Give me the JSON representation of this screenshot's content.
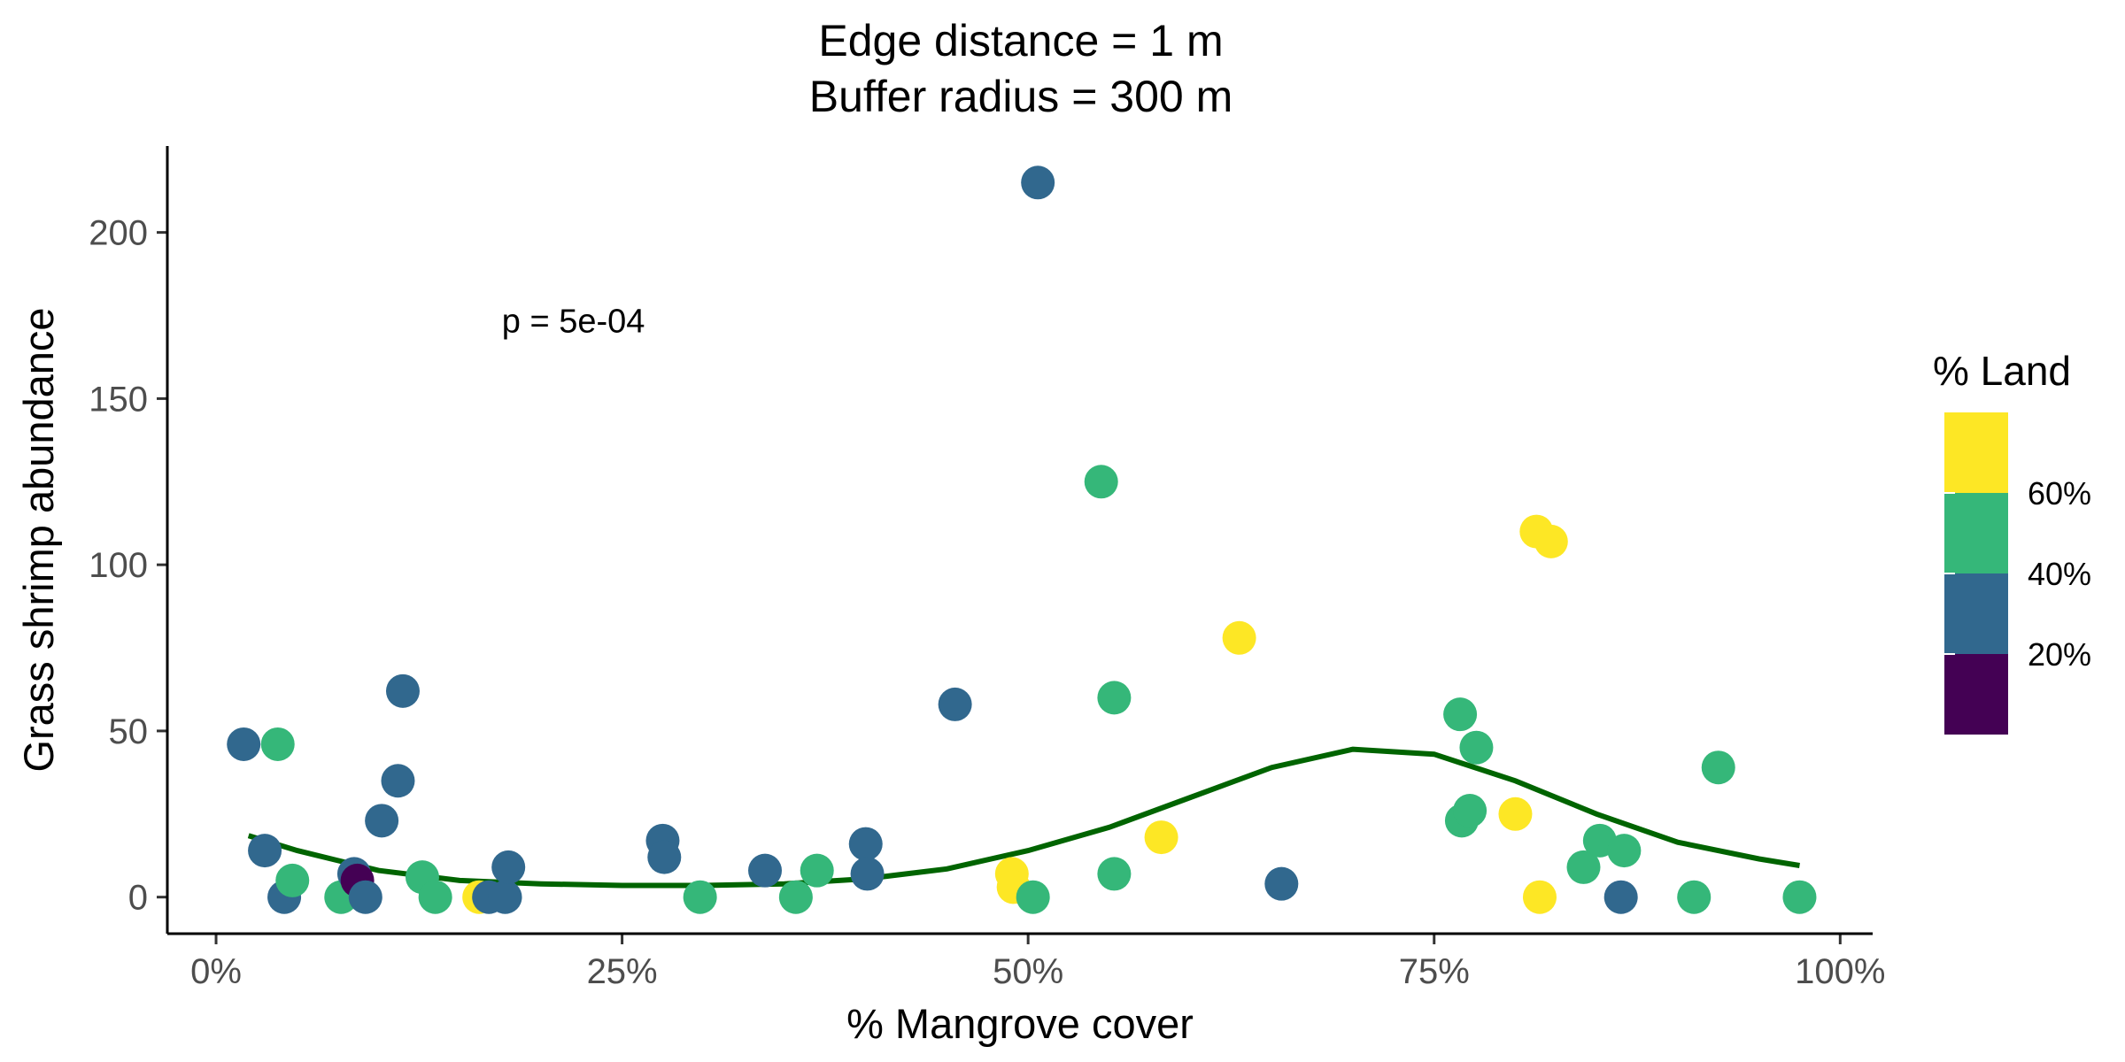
{
  "chart_data": {
    "type": "scatter",
    "title_lines": [
      "Edge distance = 1 m",
      "Buffer radius = 300 m"
    ],
    "xlabel": "% Mangrove cover",
    "ylabel": "Grass shrimp abundance",
    "xlim": [
      -0.03,
      1.02
    ],
    "ylim": [
      -11,
      226
    ],
    "x_ticks": [
      0,
      0.25,
      0.5,
      0.75,
      1.0
    ],
    "x_tick_labels": [
      "0%",
      "25%",
      "50%",
      "75%",
      "100%"
    ],
    "y_ticks": [
      0,
      50,
      100,
      150,
      200
    ],
    "y_tick_labels": [
      "0",
      "50",
      "100",
      "150",
      "200"
    ],
    "annotation": {
      "text": "p = 5e-04",
      "x": 0.22,
      "y": 170
    },
    "point_colors": {
      "yellow": "#fde725",
      "green": "#35b779",
      "blue": "#31688e",
      "purple": "#440154"
    },
    "line_color": "#006400",
    "points": [
      {
        "x": 0.017,
        "y": 46,
        "c": "blue"
      },
      {
        "x": 0.03,
        "y": 14,
        "c": "blue"
      },
      {
        "x": 0.038,
        "y": 46,
        "c": "green"
      },
      {
        "x": 0.042,
        "y": 0,
        "c": "blue"
      },
      {
        "x": 0.047,
        "y": 5,
        "c": "green"
      },
      {
        "x": 0.077,
        "y": 0,
        "c": "green"
      },
      {
        "x": 0.085,
        "y": 7,
        "c": "blue"
      },
      {
        "x": 0.087,
        "y": 5,
        "c": "purple"
      },
      {
        "x": 0.092,
        "y": 0,
        "c": "blue"
      },
      {
        "x": 0.102,
        "y": 23,
        "c": "blue"
      },
      {
        "x": 0.112,
        "y": 35,
        "c": "blue"
      },
      {
        "x": 0.115,
        "y": 62,
        "c": "blue"
      },
      {
        "x": 0.127,
        "y": 6,
        "c": "green"
      },
      {
        "x": 0.135,
        "y": 0,
        "c": "green"
      },
      {
        "x": 0.162,
        "y": 0,
        "c": "yellow"
      },
      {
        "x": 0.168,
        "y": 0,
        "c": "blue"
      },
      {
        "x": 0.178,
        "y": 0,
        "c": "blue"
      },
      {
        "x": 0.18,
        "y": 9,
        "c": "blue"
      },
      {
        "x": 0.275,
        "y": 17,
        "c": "blue"
      },
      {
        "x": 0.276,
        "y": 12,
        "c": "blue"
      },
      {
        "x": 0.298,
        "y": 0,
        "c": "green"
      },
      {
        "x": 0.338,
        "y": 8,
        "c": "blue"
      },
      {
        "x": 0.357,
        "y": 0,
        "c": "green"
      },
      {
        "x": 0.37,
        "y": 8,
        "c": "green"
      },
      {
        "x": 0.4,
        "y": 16,
        "c": "blue"
      },
      {
        "x": 0.401,
        "y": 7,
        "c": "blue"
      },
      {
        "x": 0.455,
        "y": 58,
        "c": "blue"
      },
      {
        "x": 0.49,
        "y": 7,
        "c": "yellow"
      },
      {
        "x": 0.491,
        "y": 3,
        "c": "yellow"
      },
      {
        "x": 0.503,
        "y": 0,
        "c": "green"
      },
      {
        "x": 0.506,
        "y": 215,
        "c": "blue"
      },
      {
        "x": 0.545,
        "y": 125,
        "c": "green"
      },
      {
        "x": 0.553,
        "y": 60,
        "c": "green"
      },
      {
        "x": 0.553,
        "y": 7,
        "c": "green"
      },
      {
        "x": 0.582,
        "y": 18,
        "c": "yellow"
      },
      {
        "x": 0.63,
        "y": 78,
        "c": "yellow"
      },
      {
        "x": 0.656,
        "y": 4,
        "c": "blue"
      },
      {
        "x": 0.766,
        "y": 55,
        "c": "green"
      },
      {
        "x": 0.767,
        "y": 23,
        "c": "green"
      },
      {
        "x": 0.772,
        "y": 26,
        "c": "green"
      },
      {
        "x": 0.776,
        "y": 45,
        "c": "green"
      },
      {
        "x": 0.8,
        "y": 25,
        "c": "yellow"
      },
      {
        "x": 0.813,
        "y": 110,
        "c": "yellow"
      },
      {
        "x": 0.815,
        "y": 0,
        "c": "yellow"
      },
      {
        "x": 0.822,
        "y": 107,
        "c": "yellow"
      },
      {
        "x": 0.842,
        "y": 9,
        "c": "green"
      },
      {
        "x": 0.852,
        "y": 17,
        "c": "green"
      },
      {
        "x": 0.865,
        "y": 0,
        "c": "blue"
      },
      {
        "x": 0.867,
        "y": 14,
        "c": "green"
      },
      {
        "x": 0.91,
        "y": 0,
        "c": "green"
      },
      {
        "x": 0.925,
        "y": 39,
        "c": "green"
      },
      {
        "x": 0.975,
        "y": 0,
        "c": "green"
      }
    ],
    "smooth_line": [
      {
        "x": 0.02,
        "y": 18.5
      },
      {
        "x": 0.05,
        "y": 14
      },
      {
        "x": 0.1,
        "y": 8
      },
      {
        "x": 0.15,
        "y": 5
      },
      {
        "x": 0.2,
        "y": 4
      },
      {
        "x": 0.25,
        "y": 3.5
      },
      {
        "x": 0.3,
        "y": 3.5
      },
      {
        "x": 0.35,
        "y": 4
      },
      {
        "x": 0.4,
        "y": 5.5
      },
      {
        "x": 0.45,
        "y": 8.5
      },
      {
        "x": 0.5,
        "y": 14
      },
      {
        "x": 0.55,
        "y": 21
      },
      {
        "x": 0.6,
        "y": 30
      },
      {
        "x": 0.65,
        "y": 39
      },
      {
        "x": 0.7,
        "y": 44.5
      },
      {
        "x": 0.75,
        "y": 43
      },
      {
        "x": 0.8,
        "y": 35
      },
      {
        "x": 0.85,
        "y": 25
      },
      {
        "x": 0.9,
        "y": 16.5
      },
      {
        "x": 0.95,
        "y": 11.5
      },
      {
        "x": 0.975,
        "y": 9.5
      }
    ],
    "legend": {
      "title": "% Land",
      "placement": "right",
      "bins": [
        {
          "color": "#fde725"
        },
        {
          "color": "#35b779"
        },
        {
          "color": "#31688e"
        },
        {
          "color": "#440154"
        }
      ],
      "labels": [
        "60%",
        "40%",
        "20%"
      ]
    }
  }
}
